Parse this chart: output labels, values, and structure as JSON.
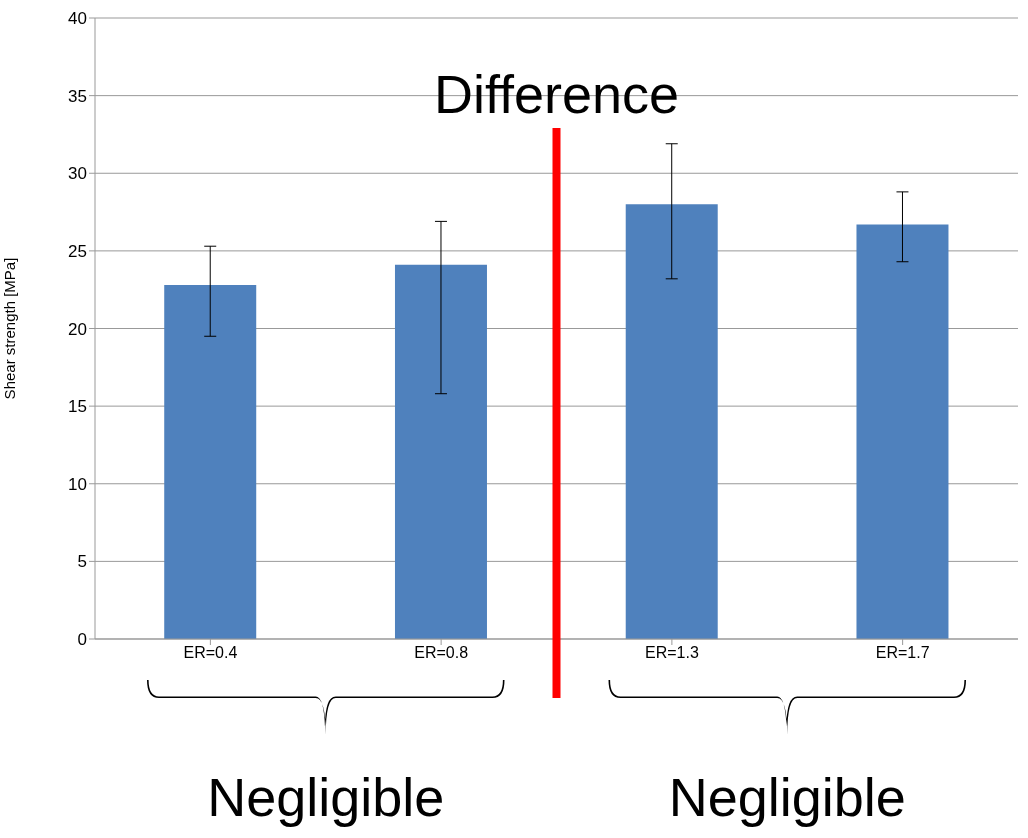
{
  "chart_data": {
    "type": "bar",
    "ylabel": "Shear strength [MPa]",
    "categories": [
      "ER=0.4",
      "ER=0.8",
      "ER=1.3",
      "ER=1.7"
    ],
    "values": [
      22.8,
      24.1,
      28.0,
      26.7
    ],
    "errors": [
      [
        19.5,
        25.3
      ],
      [
        15.8,
        26.9
      ],
      [
        23.2,
        31.9
      ],
      [
        24.3,
        28.8
      ]
    ],
    "color": "#4f81bd",
    "ylim": [
      0,
      40
    ],
    "yticks": [
      0,
      5,
      10,
      15,
      20,
      25,
      30,
      35,
      40
    ],
    "grid": "y",
    "legend": false,
    "annotations": [
      "Difference",
      "Negligible",
      "Negligible"
    ]
  }
}
